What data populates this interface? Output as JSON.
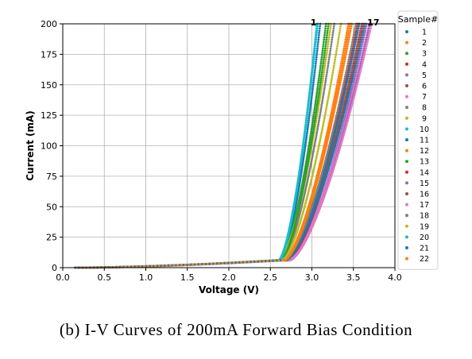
{
  "caption": "(b) I-V Curves of 200mA Forward Bias Condition",
  "chart_data": {
    "type": "scatter",
    "title": "",
    "xlabel": "Voltage (V)",
    "ylabel": "Current (mA)",
    "xlim": [
      0.0,
      4.0
    ],
    "ylim": [
      0,
      200
    ],
    "xticks": [
      "0.0",
      "0.5",
      "1.0",
      "1.5",
      "2.0",
      "2.5",
      "3.0",
      "3.5",
      "4.0"
    ],
    "yticks": [
      "0",
      "25",
      "50",
      "75",
      "100",
      "125",
      "150",
      "175",
      "200"
    ],
    "grid": true,
    "legend": {
      "title": "Sample#",
      "placement": "right-outside"
    },
    "annotations": [
      {
        "text": "1",
        "x": 3.02,
        "y": 200
      },
      {
        "text": "17",
        "x": 3.74,
        "y": 200
      }
    ],
    "series": [
      {
        "name": "1",
        "color": "#1f77b4",
        "vth": 2.62,
        "v200": 3.1
      },
      {
        "name": "2",
        "color": "#ff7f0e",
        "vth": 2.66,
        "v200": 3.48
      },
      {
        "name": "3",
        "color": "#2ca02c",
        "vth": 2.62,
        "v200": 3.17
      },
      {
        "name": "4",
        "color": "#d62728",
        "vth": 2.68,
        "v200": 3.55
      },
      {
        "name": "5",
        "color": "#9467bd",
        "vth": 2.72,
        "v200": 3.66
      },
      {
        "name": "6",
        "color": "#8c564b",
        "vth": 2.68,
        "v200": 3.57
      },
      {
        "name": "7",
        "color": "#e377c2",
        "vth": 2.7,
        "v200": 3.69
      },
      {
        "name": "8",
        "color": "#7f7f7f",
        "vth": 2.63,
        "v200": 3.27
      },
      {
        "name": "9",
        "color": "#bcbd22",
        "vth": 2.61,
        "v200": 3.23
      },
      {
        "name": "10",
        "color": "#17becf",
        "vth": 2.6,
        "v200": 3.07
      },
      {
        "name": "11",
        "color": "#1f77b4",
        "vth": 2.68,
        "v200": 3.57
      },
      {
        "name": "12",
        "color": "#ff7f0e",
        "vth": 2.66,
        "v200": 3.44
      },
      {
        "name": "13",
        "color": "#2ca02c",
        "vth": 2.63,
        "v200": 3.2
      },
      {
        "name": "14",
        "color": "#d62728",
        "vth": 2.7,
        "v200": 3.62
      },
      {
        "name": "15",
        "color": "#9467bd",
        "vth": 2.73,
        "v200": 3.7
      },
      {
        "name": "16",
        "color": "#8c564b",
        "vth": 2.69,
        "v200": 3.6
      },
      {
        "name": "17",
        "color": "#e377c2",
        "vth": 2.72,
        "v200": 3.72
      },
      {
        "name": "18",
        "color": "#7f7f7f",
        "vth": 2.67,
        "v200": 3.53
      },
      {
        "name": "19",
        "color": "#bcbd22",
        "vth": 2.64,
        "v200": 3.35
      },
      {
        "name": "20",
        "color": "#17becf",
        "vth": 2.61,
        "v200": 3.06
      },
      {
        "name": "21",
        "color": "#1f77b4",
        "vth": 2.68,
        "v200": 3.64
      },
      {
        "name": "22",
        "color": "#ff7f0e",
        "vth": 2.67,
        "v200": 3.46
      }
    ],
    "leakage_current_at_2_6V": 6
  }
}
